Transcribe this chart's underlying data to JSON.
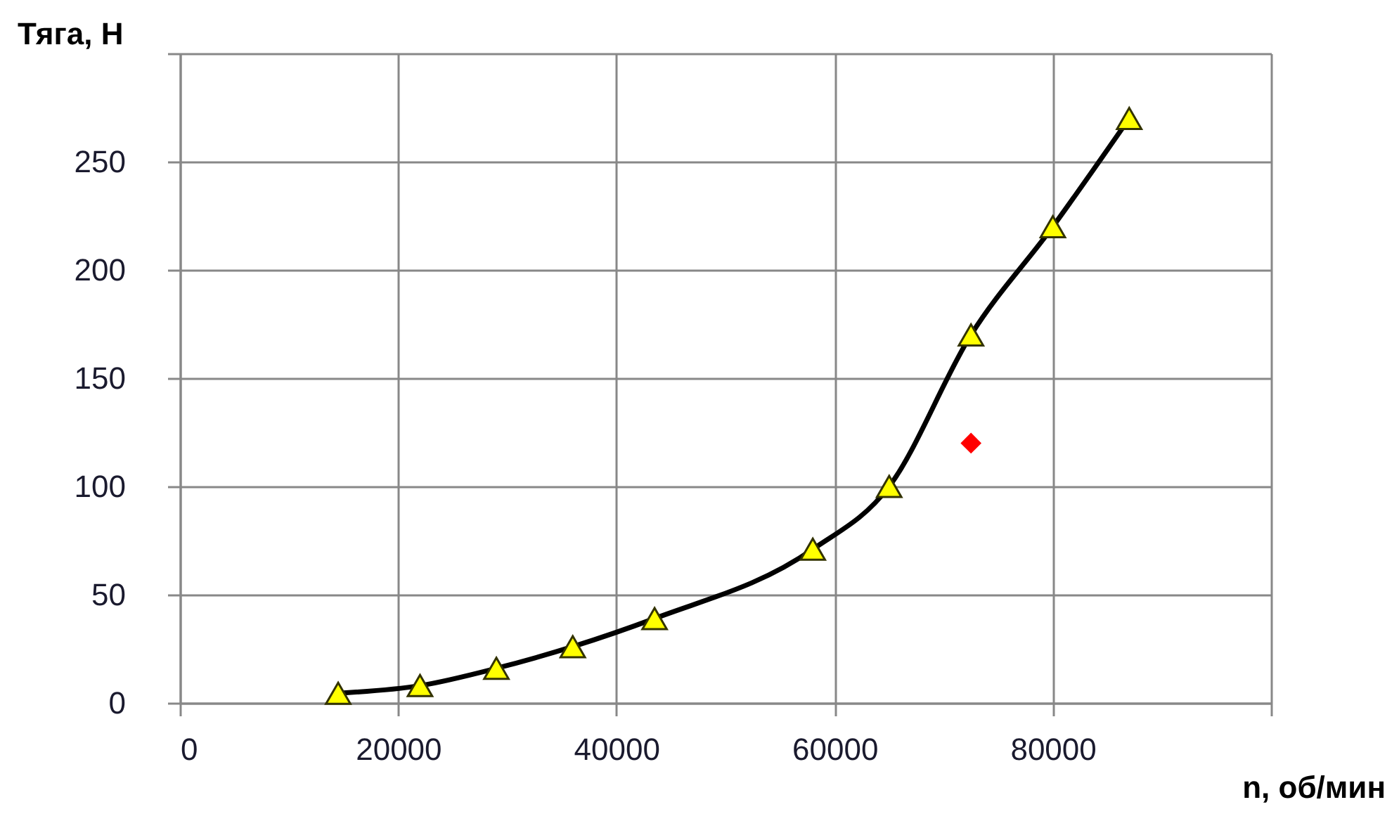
{
  "chart_data": {
    "type": "line",
    "xlabel": "n, об/мин",
    "ylabel": "Тяга, Н",
    "xlim": [
      0,
      100000
    ],
    "xticks": [
      0,
      20000,
      40000,
      60000,
      80000,
      {
        "value": 100000,
        "label": null
      }
    ],
    "ylim": [
      0,
      300
    ],
    "yticks": [
      0,
      50,
      100,
      150,
      200,
      250,
      {
        "value": 300,
        "label": null
      }
    ],
    "grid": true,
    "series": [
      {
        "color": "#000000",
        "marker": "triangle",
        "colors": [
          "#ffff00",
          "#ffff00",
          "#ffff00",
          "#ffff00",
          "#ffff00",
          "#ffff00",
          "#ffff00",
          "#ffff00",
          "#ffff00",
          "#ffff00"
        ],
        "x": [
          14500,
          22000,
          29000,
          36000,
          43500,
          58000,
          65000,
          72500,
          80000,
          87000
        ],
        "values": [
          4.5,
          8,
          16,
          26,
          39,
          71,
          100,
          170,
          220,
          270
        ]
      },
      {
        "type": "scatter",
        "color": "#ff0000",
        "marker": "diamond",
        "x": [
          72500
        ],
        "values": [
          120
        ]
      }
    ]
  }
}
